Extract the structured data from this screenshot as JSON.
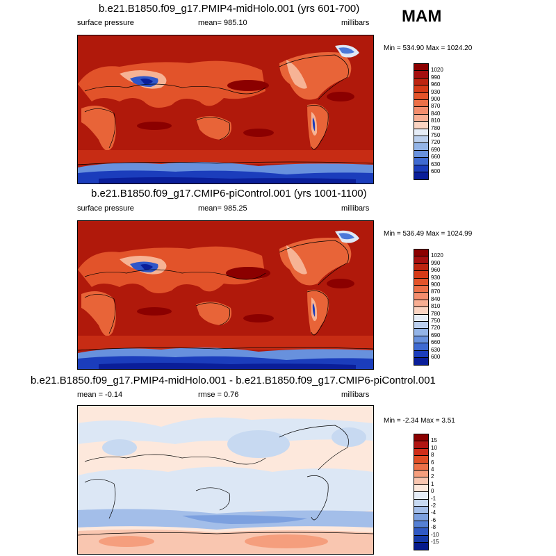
{
  "season": "MAM",
  "panels": [
    {
      "title": "b.e21.B1850.f09_g17.PMIP4-midHolo.001 (yrs 601-700)",
      "left_label": "surface pressure",
      "mean_label": "mean= 985.10",
      "units": "millibars",
      "minmax": "Min = 534.90 Max = 1024.20",
      "type": "absolute"
    },
    {
      "title": "b.e21.B1850.f09_g17.CMIP6-piControl.001 (yrs 1001-1100)",
      "left_label": "surface pressure",
      "mean_label": "mean= 985.25",
      "units": "millibars",
      "minmax": "Min = 536.49 Max = 1024.99",
      "type": "absolute"
    },
    {
      "title": "b.e21.B1850.f09_g17.PMIP4-midHolo.001 - b.e21.B1850.f09_g17.CMIP6-piControl.001",
      "left_label": "mean =  -0.14",
      "mean_label": "rmse =   0.76",
      "units": "millibars",
      "minmax": "Min =  -2.34 Max =   3.51",
      "type": "difference"
    }
  ],
  "colorbars": {
    "absolute": {
      "labels": [
        "1020",
        "990",
        "960",
        "930",
        "900",
        "870",
        "840",
        "810",
        "780",
        "750",
        "720",
        "690",
        "660",
        "630",
        "600"
      ],
      "colors": [
        "#8b0000",
        "#a50f0f",
        "#bd2410",
        "#d53a17",
        "#e3542a",
        "#ec7048",
        "#f38d6d",
        "#f8ae93",
        "#fbd4c2",
        "#e6edf7",
        "#bcd0ee",
        "#93b4e7",
        "#6891dd",
        "#3f6ad1",
        "#1b3dbc",
        "#0a1e99"
      ]
    },
    "difference": {
      "labels": [
        "15",
        "10",
        "8",
        "6",
        "4",
        "2",
        "1",
        "0",
        "-1",
        "-2",
        "-4",
        "-6",
        "-8",
        "-10",
        "-15"
      ],
      "colors": [
        "#8b0000",
        "#b01512",
        "#cf2e19",
        "#e04e25",
        "#ec7048",
        "#f59e7d",
        "#f9c6b0",
        "#fde8dc",
        "#e6edf7",
        "#c7d9f1",
        "#a3bee9",
        "#7ca0df",
        "#5580d4",
        "#3059c3",
        "#163aa8",
        "#061a8b"
      ]
    }
  }
}
